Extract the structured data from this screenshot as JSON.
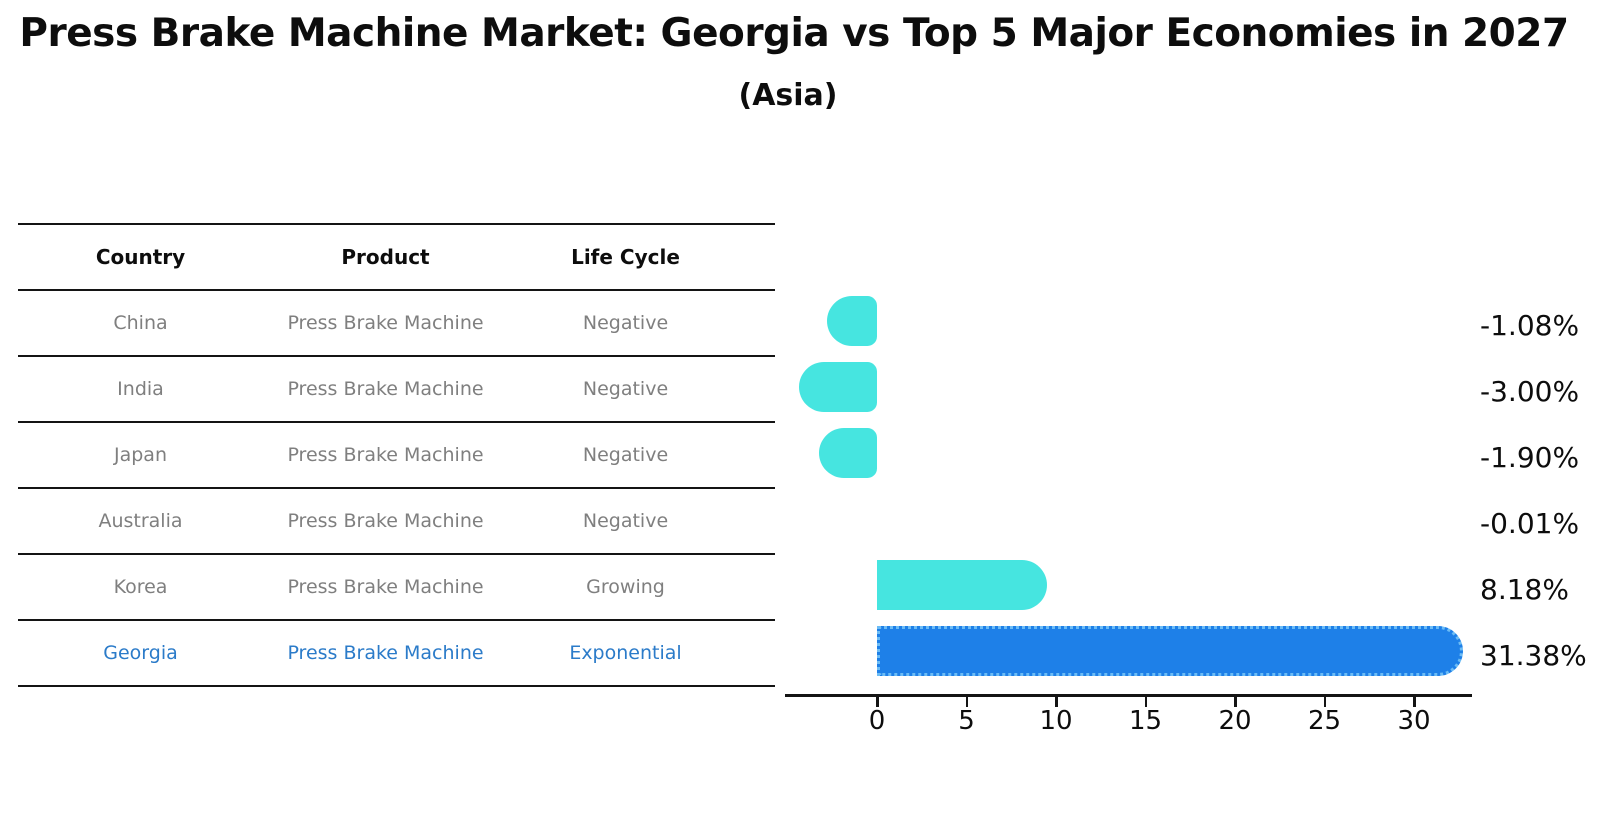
{
  "header": {
    "title": "Press Brake Machine Market: Georgia vs Top 5 Major Economies in 2027",
    "subtitle": "(Asia)"
  },
  "table": {
    "columns": [
      "Country",
      "Product",
      "Life Cycle"
    ],
    "rows": [
      {
        "country": "China",
        "product": "Press Brake Machine",
        "life_cycle": "Negative",
        "highlighted": false
      },
      {
        "country": "India",
        "product": "Press Brake Machine",
        "life_cycle": "Negative",
        "highlighted": false
      },
      {
        "country": "Japan",
        "product": "Press Brake Machine",
        "life_cycle": "Negative",
        "highlighted": false
      },
      {
        "country": "Australia",
        "product": "Press Brake Machine",
        "life_cycle": "Negative",
        "highlighted": false
      },
      {
        "country": "Korea",
        "product": "Press Brake Machine",
        "life_cycle": "Growing",
        "highlighted": false
      },
      {
        "country": "Georgia",
        "product": "Press Brake Machine",
        "life_cycle": "Exponential",
        "highlighted": true
      }
    ]
  },
  "chart_data": {
    "type": "bar",
    "orientation": "horizontal",
    "title": "Press Brake Machine Market: Georgia vs Top 5 Major Economies in 2027",
    "subtitle": "(Asia)",
    "categories": [
      "China",
      "India",
      "Japan",
      "Australia",
      "Korea",
      "Georgia"
    ],
    "values": [
      -1.08,
      -3.0,
      -1.9,
      -0.01,
      8.18,
      31.38
    ],
    "value_labels": [
      "-1.08%",
      "-3.00%",
      "-1.90%",
      "-0.01%",
      "8.18%",
      "31.38%"
    ],
    "x_ticks": [
      "0",
      "5",
      "10",
      "15",
      "20",
      "25",
      "30"
    ],
    "x_tick_values": [
      0,
      5,
      10,
      15,
      20,
      25,
      30
    ],
    "xlim": [
      -5.1,
      33.2
    ],
    "grid": false,
    "legend": false,
    "highlight_index": 5,
    "colors": {
      "bar_default": "#46E5E0",
      "bar_highlight": "#1E80E8",
      "highlight_border": "#6CBCF5",
      "highlight_text": "#2B7BC9",
      "cell_text": "#7f7f7f",
      "axis": "#141414"
    }
  }
}
